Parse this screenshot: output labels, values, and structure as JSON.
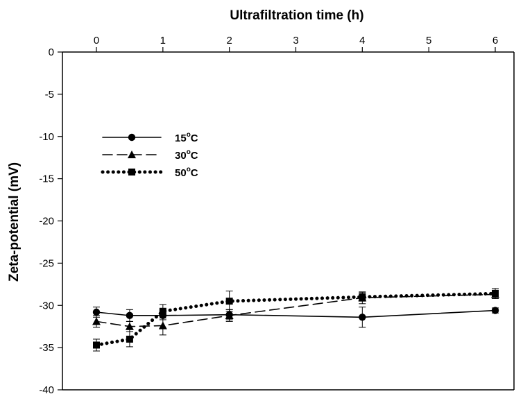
{
  "chart_data": {
    "type": "line",
    "title": "Ultrafiltration time (h)",
    "xlabel": "Ultrafiltration time (h)",
    "ylabel": "Zeta-potential (mV)",
    "x_axis_position": "top",
    "xlim": [
      -0.5,
      6.3
    ],
    "ylim": [
      -40,
      0
    ],
    "xticks": [
      0,
      1,
      2,
      3,
      4,
      5,
      6
    ],
    "xtick_labels": [
      "0",
      "1",
      "2",
      "3",
      "4",
      "5",
      "6"
    ],
    "yticks": [
      0,
      -5,
      -10,
      -15,
      -20,
      -25,
      -30,
      -35,
      -40
    ],
    "ytick_labels": [
      "0",
      "-5",
      "-10",
      "-15",
      "-20",
      "-25",
      "-30",
      "-35",
      "-40"
    ],
    "grid": false,
    "legend_position": "upper-left",
    "series": [
      {
        "name": "15°C",
        "name_base": "15",
        "name_sup": "o",
        "name_unit": "C",
        "marker": "circle",
        "line_style": "solid",
        "color": "#000000",
        "x": [
          0,
          0.5,
          1,
          2,
          4,
          6
        ],
        "y": [
          -30.8,
          -31.2,
          -31.2,
          -31.1,
          -31.4,
          -30.6
        ],
        "err": [
          0.6,
          0.7,
          0.5,
          0.6,
          1.2,
          0.3
        ]
      },
      {
        "name": "30°C",
        "name_base": "30",
        "name_sup": "o",
        "name_unit": "C",
        "marker": "triangle",
        "line_style": "dashed",
        "color": "#000000",
        "x": [
          0,
          0.5,
          1,
          2,
          4,
          6
        ],
        "y": [
          -31.9,
          -32.5,
          -32.4,
          -31.2,
          -29.1,
          -28.7
        ],
        "err": [
          0.7,
          0.6,
          1.1,
          0.7,
          0.7,
          0.5
        ]
      },
      {
        "name": "50°C",
        "name_base": "50",
        "name_sup": "o",
        "name_unit": "C",
        "marker": "square",
        "line_style": "dotted",
        "color": "#000000",
        "x": [
          0,
          0.5,
          1,
          2,
          4,
          6
        ],
        "y": [
          -34.7,
          -34.0,
          -30.7,
          -29.5,
          -29.0,
          -28.6
        ],
        "err": [
          0.7,
          0.9,
          0.8,
          1.2,
          0.5,
          0.6
        ]
      }
    ]
  }
}
